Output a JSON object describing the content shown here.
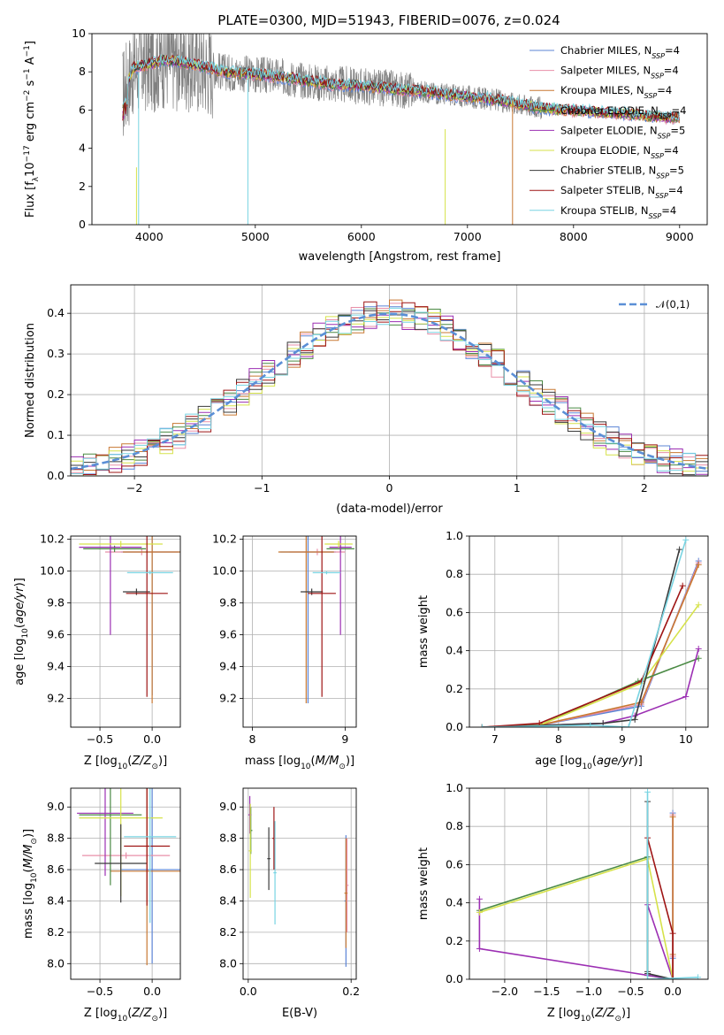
{
  "figure_title": "PLATE=0300, MJD=51943, FIBERID=0076, z=0.024",
  "colors": [
    "#5b84d6",
    "#e88fa8",
    "#c87832",
    "#4a8a44",
    "#9c2fb3",
    "#d6e24a",
    "#3a3a3a",
    "#9e1414",
    "#78d4e2"
  ],
  "spectrum_data_color": "#808080",
  "legend": [
    "Chabrier MILES, N_SSP=4",
    "Salpeter MILES, N_SSP=4",
    "Kroupa MILES, N_SSP=4",
    "Chabrier ELODIE, N_SSP=4",
    "Salpeter ELODIE, N_SSP=5",
    "Kroupa ELODIE, N_SSP=4",
    "Chabrier STELIB, N_SSP=5",
    "Salpeter STELIB, N_SSP=4",
    "Kroupa STELIB, N_SSP=4"
  ],
  "hist_legend": "N(0,1)",
  "chart_data": [
    {
      "type": "line",
      "panel": "spectrum",
      "xlabel": "wavelength [Angstrom, rest frame]",
      "ylabel": "Flux [f_λ 10^-17 erg cm^-2 s^-1 A^-1]",
      "xlim": [
        3460,
        9260
      ],
      "ylim": [
        0,
        10
      ],
      "xticks": [
        4000,
        5000,
        6000,
        7000,
        8000,
        9000
      ],
      "yticks": [
        0,
        2,
        4,
        6,
        8,
        10
      ],
      "x": [
        3750,
        3850,
        4000,
        4150,
        4300,
        4500,
        4700,
        4900,
        5100,
        5300,
        5500,
        5700,
        5900,
        6100,
        6300,
        6500,
        6700,
        6900,
        7100,
        7300,
        7500,
        7700,
        7900,
        8100,
        8300,
        8500,
        8700,
        8900
      ],
      "model_flux": [
        6.8,
        8.2,
        8.4,
        8.6,
        8.5,
        8.3,
        8.0,
        7.9,
        7.8,
        7.7,
        7.5,
        7.35,
        7.3,
        7.2,
        7.1,
        7.0,
        6.9,
        6.75,
        6.65,
        6.5,
        6.3,
        6.1,
        6.0,
        5.95,
        5.85,
        5.8,
        5.7,
        5.6
      ]
    },
    {
      "type": "histogram",
      "panel": "residuals",
      "xlabel": "(data-model)/error",
      "ylabel": "Normed distribution",
      "xlim": [
        -2.5,
        2.5
      ],
      "ylim": [
        0,
        0.47
      ],
      "xticks": [
        -2,
        -1,
        0,
        1,
        2
      ],
      "yticks": [
        0.0,
        0.1,
        0.2,
        0.3,
        0.4
      ],
      "bin_width": 0.1
    },
    {
      "type": "scatter",
      "panel": "age_vs_Z",
      "xlabel": "Z [log10(Z/Z☉)]",
      "ylabel": "age [log10(age/yr)]",
      "xlim": [
        -0.78,
        0.27
      ],
      "ylim": [
        9.02,
        10.22
      ],
      "xticks": [
        -0.5,
        0.0
      ],
      "xtick_labels": [
        "−0.5",
        "0.0"
      ],
      "yticks": [
        9.2,
        9.4,
        9.6,
        9.8,
        10.0,
        10.2
      ],
      "points": [
        {
          "x": 0.0,
          "y": 10.12,
          "xerr": 0.3,
          "yerr": 0.9
        },
        {
          "x": -0.1,
          "y": 10.12,
          "xerr": 0.35,
          "yerr": 0.02
        },
        {
          "x": 0.0,
          "y": 10.12,
          "xerr": 0.28,
          "yerr": 0.95
        },
        {
          "x": -0.36,
          "y": 10.14,
          "xerr": 0.3,
          "yerr": 0.02
        },
        {
          "x": -0.4,
          "y": 10.15,
          "xerr": 0.3,
          "yerr": 0.55
        },
        {
          "x": -0.3,
          "y": 10.17,
          "xerr": 0.4,
          "yerr": 0.02
        },
        {
          "x": -0.15,
          "y": 9.87,
          "xerr": 0.13,
          "yerr": 0.02
        },
        {
          "x": -0.05,
          "y": 9.86,
          "xerr": 0.2,
          "yerr": 0.65
        },
        {
          "x": -0.02,
          "y": 9.99,
          "xerr": 0.22,
          "yerr": 0.01
        }
      ]
    },
    {
      "type": "scatter",
      "panel": "age_vs_mass",
      "xlabel": "mass [log10(M/M☉)]",
      "ylabel": "",
      "xlim": [
        7.9,
        9.12
      ],
      "ylim": [
        9.02,
        10.22
      ],
      "xticks": [
        8,
        9
      ],
      "yticks": [
        9.2,
        9.4,
        9.6,
        9.8,
        10.0,
        10.2
      ],
      "points": [
        {
          "x": 8.6,
          "y": 10.12,
          "xerr": 0.3,
          "yerr": 0.95
        },
        {
          "x": 8.7,
          "y": 10.12,
          "xerr": 0.3,
          "yerr": 0.02
        },
        {
          "x": 8.58,
          "y": 10.12,
          "xerr": 0.3,
          "yerr": 0.95
        },
        {
          "x": 8.95,
          "y": 10.14,
          "xerr": 0.15,
          "yerr": 0.02
        },
        {
          "x": 8.95,
          "y": 10.15,
          "xerr": 0.12,
          "yerr": 0.55
        },
        {
          "x": 8.93,
          "y": 10.17,
          "xerr": 0.15,
          "yerr": 0.02
        },
        {
          "x": 8.64,
          "y": 9.87,
          "xerr": 0.12,
          "yerr": 0.02
        },
        {
          "x": 8.75,
          "y": 9.86,
          "xerr": 0.15,
          "yerr": 0.65
        },
        {
          "x": 8.8,
          "y": 9.99,
          "xerr": 0.15,
          "yerr": 0.01
        }
      ]
    },
    {
      "type": "line",
      "panel": "mass_weight_vs_age",
      "xlabel": "age [log10(age/yr)]",
      "ylabel": "mass weight",
      "xlim": [
        6.6,
        10.35
      ],
      "ylim": [
        0,
        1.0
      ],
      "xticks": [
        7,
        8,
        9,
        10
      ],
      "yticks": [
        0.0,
        0.2,
        0.4,
        0.6,
        0.8,
        1.0
      ],
      "series": [
        {
          "x": [
            6.8,
            7.7,
            9.3,
            10.2
          ],
          "y": [
            0.0,
            0.01,
            0.11,
            0.87
          ]
        },
        {
          "x": [
            6.8,
            7.7,
            9.3,
            10.2
          ],
          "y": [
            0.0,
            0.01,
            0.12,
            0.86
          ]
        },
        {
          "x": [
            6.8,
            7.7,
            9.3,
            10.2
          ],
          "y": [
            0.0,
            0.01,
            0.13,
            0.85
          ]
        },
        {
          "x": [
            6.8,
            7.7,
            9.25,
            10.2
          ],
          "y": [
            0.0,
            0.01,
            0.24,
            0.36
          ]
        },
        {
          "x": [
            6.8,
            8.7,
            9.2,
            10.0,
            10.2
          ],
          "y": [
            0.0,
            0.02,
            0.06,
            0.16,
            0.41
          ]
        },
        {
          "x": [
            6.8,
            7.7,
            9.3,
            10.2
          ],
          "y": [
            0.0,
            0.01,
            0.23,
            0.64
          ]
        },
        {
          "x": [
            6.8,
            8.7,
            9.2,
            9.9
          ],
          "y": [
            0.0,
            0.02,
            0.04,
            0.93
          ]
        },
        {
          "x": [
            6.8,
            7.7,
            9.3,
            9.95
          ],
          "y": [
            0.0,
            0.02,
            0.24,
            0.74
          ]
        },
        {
          "x": [
            6.8,
            8.5,
            9.1,
            10.0
          ],
          "y": [
            0.0,
            0.01,
            0.0,
            0.98
          ]
        }
      ]
    },
    {
      "type": "scatter",
      "panel": "mass_vs_Z",
      "xlabel": "Z [log10(Z/Z☉)]",
      "ylabel": "mass [log10(M/M☉)]",
      "xlim": [
        -0.78,
        0.27
      ],
      "ylim": [
        7.9,
        9.12
      ],
      "xticks": [
        -0.5,
        0.0
      ],
      "xtick_labels": [
        "−0.5",
        "0.0"
      ],
      "yticks": [
        8.0,
        8.2,
        8.4,
        8.6,
        8.8,
        9.0
      ],
      "points": [
        {
          "x": 0.0,
          "y": 8.6,
          "xerr": 0.3,
          "yerr": 0.6
        },
        {
          "x": -0.25,
          "y": 8.69,
          "xerr": 0.42,
          "yerr": 0.02
        },
        {
          "x": -0.05,
          "y": 8.59,
          "xerr": 0.35,
          "yerr": 0.6
        },
        {
          "x": -0.4,
          "y": 8.95,
          "xerr": 0.3,
          "yerr": 0.45
        },
        {
          "x": -0.45,
          "y": 8.96,
          "xerr": 0.27,
          "yerr": 0.4
        },
        {
          "x": -0.3,
          "y": 8.93,
          "xerr": 0.4,
          "yerr": 0.5
        },
        {
          "x": -0.3,
          "y": 8.64,
          "xerr": 0.25,
          "yerr": 0.25
        },
        {
          "x": -0.05,
          "y": 8.75,
          "xerr": 0.22,
          "yerr": 0.38
        },
        {
          "x": -0.02,
          "y": 8.81,
          "xerr": 0.25,
          "yerr": 0.55
        }
      ]
    },
    {
      "type": "scatter",
      "panel": "mass_vs_EBV",
      "xlabel": "E(B-V)",
      "ylabel": "",
      "xlim": [
        -0.01,
        0.21
      ],
      "ylim": [
        7.9,
        9.12
      ],
      "xticks": [
        0.0,
        0.2
      ],
      "yticks": [
        8.0,
        8.2,
        8.4,
        8.6,
        8.8,
        9.0
      ],
      "points": [
        {
          "x": 0.19,
          "y": 8.4,
          "xerr": 0.003,
          "yerr": 0.42
        },
        {
          "x": 0.192,
          "y": 8.5,
          "xerr": 0.003,
          "yerr": 0.3
        },
        {
          "x": 0.19,
          "y": 8.45,
          "xerr": 0.003,
          "yerr": 0.35
        },
        {
          "x": 0.005,
          "y": 8.85,
          "xerr": 0.003,
          "yerr": 0.15
        },
        {
          "x": 0.003,
          "y": 8.95,
          "xerr": 0.003,
          "yerr": 0.12
        },
        {
          "x": 0.004,
          "y": 8.72,
          "xerr": 0.003,
          "yerr": 0.3
        },
        {
          "x": 0.04,
          "y": 8.67,
          "xerr": 0.003,
          "yerr": 0.2
        },
        {
          "x": 0.05,
          "y": 8.8,
          "xerr": 0.003,
          "yerr": 0.2
        },
        {
          "x": 0.052,
          "y": 8.58,
          "xerr": 0.003,
          "yerr": 0.33
        }
      ]
    },
    {
      "type": "line",
      "panel": "mass_weight_vs_Z",
      "xlabel": "Z [log10(Z/Z☉)]",
      "ylabel": "mass weight",
      "xlim": [
        -2.42,
        0.42
      ],
      "ylim": [
        0,
        1.0
      ],
      "xticks": [
        -2.0,
        -1.5,
        -1.0,
        -0.5,
        0.0
      ],
      "xtick_labels": [
        "−2.0",
        "−1.5",
        "−1.0",
        "−0.5",
        "0.0"
      ],
      "yticks": [
        0.0,
        0.2,
        0.4,
        0.6,
        0.8,
        1.0
      ],
      "series": [
        {
          "x": [
            0.0,
            0.0,
            0.0
          ],
          "y": [
            0.0,
            0.11,
            0.87
          ]
        },
        {
          "x": [
            0.0,
            0.0,
            0.0
          ],
          "y": [
            0.0,
            0.12,
            0.86
          ]
        },
        {
          "x": [
            0.0,
            0.0,
            0.0
          ],
          "y": [
            0.0,
            0.13,
            0.85
          ]
        },
        {
          "x": [
            -2.3,
            -0.3,
            -0.3,
            0.0
          ],
          "y": [
            0.36,
            0.64,
            0.02,
            0.0
          ]
        },
        {
          "x": [
            -2.3,
            -2.3,
            0.0,
            -0.3,
            0.0
          ],
          "y": [
            0.42,
            0.16,
            0.0,
            0.39,
            0.0
          ]
        },
        {
          "x": [
            -2.3,
            -0.3,
            0.0
          ],
          "y": [
            0.35,
            0.63,
            0.0
          ]
        },
        {
          "x": [
            -0.3,
            -0.3,
            -0.3,
            0.0
          ],
          "y": [
            0.93,
            0.04,
            0.03,
            0.0
          ]
        },
        {
          "x": [
            -0.3,
            0.0,
            0.0
          ],
          "y": [
            0.74,
            0.24,
            0.0
          ]
        },
        {
          "x": [
            -0.3,
            -0.3,
            0.3
          ],
          "y": [
            0.98,
            0.0,
            0.01
          ]
        }
      ]
    }
  ]
}
